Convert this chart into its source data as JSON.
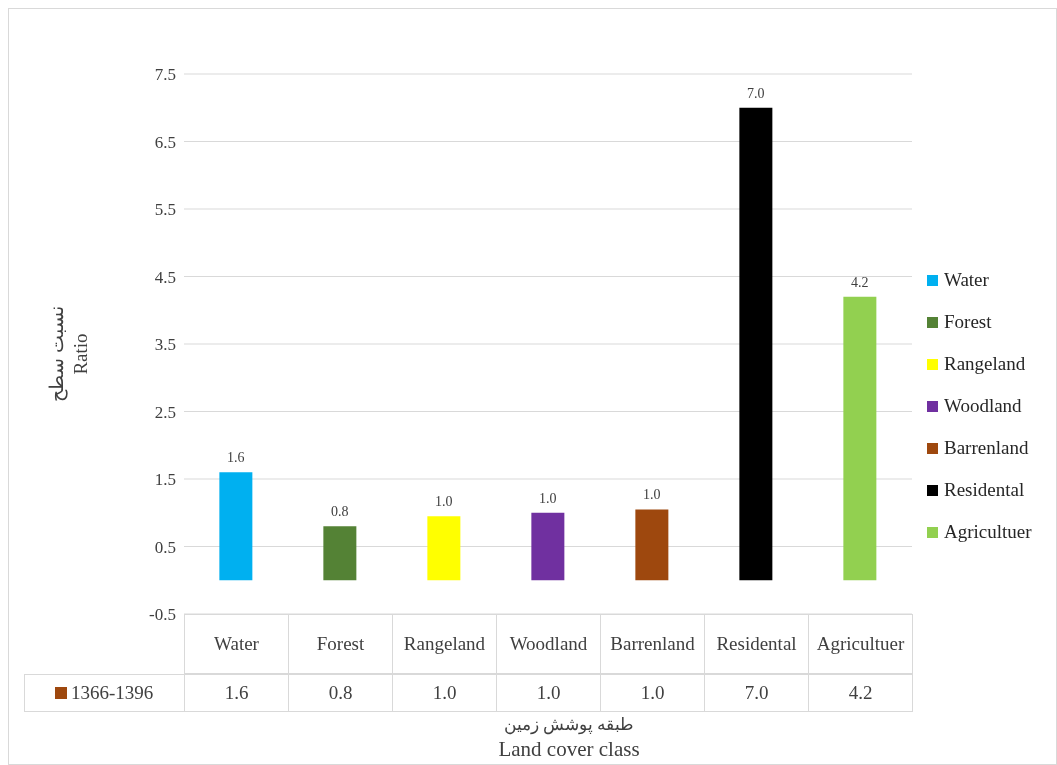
{
  "chart_data": {
    "type": "bar",
    "ylabel": "نسبت سطح\nRatio",
    "xlabel": "طبقه پوشش زمین\nLand cover class",
    "categories": [
      "Water",
      "Forest",
      "Rangeland",
      "Woodland",
      "Barrenland",
      "Residental",
      "Agricultuer"
    ],
    "series": [
      {
        "name": "1366-1396",
        "values": [
          1.6,
          0.8,
          0.95,
          1.0,
          1.05,
          7.0,
          4.2
        ],
        "value_labels": [
          "1.6",
          "0.8",
          "1.0",
          "1.0",
          "1.0",
          "7.0",
          "4.2"
        ]
      }
    ],
    "colors": [
      "#00b0f0",
      "#548235",
      "#ffff00",
      "#7030a0",
      "#9e480e",
      "#000000",
      "#92d050"
    ],
    "ylim": [
      -0.5,
      7.5
    ],
    "yticks": [
      -0.5,
      0.5,
      1.5,
      2.5,
      3.5,
      4.5,
      5.5,
      6.5,
      7.5
    ],
    "grid": "y",
    "legend": "bottom left"
  }
}
